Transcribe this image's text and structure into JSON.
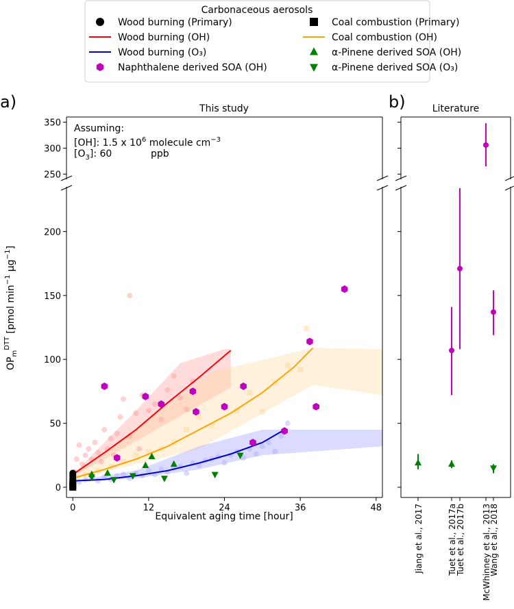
{
  "legend": {
    "title": "Carbonaceous aerosols",
    "entries": [
      {
        "key": "wood_primary",
        "label": "Wood burning (Primary)",
        "marker": "circle",
        "color": "#000000"
      },
      {
        "key": "coal_primary",
        "label": "Coal combustion (Primary)",
        "marker": "square",
        "color": "#000000"
      },
      {
        "key": "wood_oh",
        "label": "Wood burning (OH)",
        "marker": "line",
        "color": "#ff0000"
      },
      {
        "key": "coal_oh",
        "label": "Coal combustion (OH)",
        "marker": "line",
        "color": "#ffa500"
      },
      {
        "key": "wood_o3",
        "label": "Wood burning (O₃)",
        "marker": "line",
        "color": "#0000cc"
      },
      {
        "key": "apinene_oh",
        "label": "α-Pinene derived SOA (OH)",
        "marker": "triangle-up",
        "color": "#008000"
      },
      {
        "key": "naph_oh",
        "label": "Naphthalene derived SOA (OH)",
        "marker": "hexagon",
        "color": "#bf00bf"
      },
      {
        "key": "apinene_o3",
        "label": "α-Pinene derived SOA (O₃)",
        "marker": "triangle-down",
        "color": "#008000"
      }
    ]
  },
  "panel_a": {
    "letter": "a)",
    "title": "This study"
  },
  "panel_b": {
    "letter": "b)",
    "title": "Literature"
  },
  "annotation": {
    "line1": "Assuming:",
    "oh_prefix": "[OH]: 1.5 x 10",
    "oh_exp": "6",
    "oh_suffix": " molecule cm",
    "oh_unit_exp": "−3",
    "o3_prefix": "[O",
    "o3_sub": "3",
    "o3_mid": "]:  60",
    "o3_unit": "ppb"
  },
  "axes": {
    "x_label": "Equivalent aging time [hour]",
    "y_label_main": "OP",
    "y_label_sub": "m",
    "y_label_sup": "DTT",
    "y_label_rest": " [pmol min",
    "y_label_exp1": "−1",
    "y_label_mid": " μg",
    "y_label_exp2": "−1",
    "y_label_end": "]"
  },
  "chart_data": [
    {
      "type": "scatter",
      "title": "This study",
      "xlabel": "Equivalent aging time [hour]",
      "ylabel": "OPm DTT [pmol min−1 μg−1]",
      "xlim": [
        -1,
        49
      ],
      "ylim_lower": [
        -8,
        235
      ],
      "ylim_upper": [
        240,
        360
      ],
      "x_ticks": [
        "0",
        "12",
        "24",
        "36",
        "48"
      ],
      "y_ticks_lower": [
        "0",
        "50",
        "100",
        "150",
        "200"
      ],
      "y_ticks_upper": [
        "250",
        "300",
        "350"
      ],
      "fit_lines": [
        {
          "name": "Wood burning (OH)",
          "color": "#ff0000",
          "x": [
            0,
            5,
            10,
            15,
            20,
            25
          ],
          "y": [
            10,
            27,
            45,
            66,
            86,
            107
          ]
        },
        {
          "name": "Coal combustion (OH)",
          "color": "#ffa500",
          "x": [
            0,
            5,
            10,
            15,
            20,
            25,
            30,
            35,
            38
          ],
          "y": [
            7,
            14,
            22,
            32,
            45,
            58,
            74,
            94,
            109
          ]
        },
        {
          "name": "Wood burning (O₃)",
          "color": "#0000cc",
          "x": [
            0,
            5,
            10,
            15,
            20,
            25,
            30,
            33.5
          ],
          "y": [
            5,
            6,
            9,
            13,
            19,
            26,
            35,
            45
          ]
        }
      ],
      "bands": [
        {
          "name": "Wood burning (OH) uncertainty",
          "color": "#ff9999",
          "upper_x": [
            0,
            10,
            17,
            24,
            25
          ],
          "upper_y": [
            10,
            60,
            97,
            108,
            108
          ],
          "lower_x": [
            25,
            0
          ],
          "lower_y": [
            78,
            8
          ]
        },
        {
          "name": "Coal combustion (OH) uncertainty",
          "color": "#ffd699",
          "upper_x": [
            0,
            22,
            38,
            49
          ],
          "upper_y": [
            8,
            90,
            109,
            108
          ],
          "lower_x": [
            49,
            38,
            20,
            0
          ],
          "lower_y": [
            72,
            80,
            30,
            6
          ]
        },
        {
          "name": "Wood burning (O₃) uncertainty",
          "color": "#9999ff",
          "upper_x": [
            0,
            10,
            20,
            30,
            49
          ],
          "upper_y": [
            5,
            13,
            32,
            45,
            45
          ],
          "lower_x": [
            49,
            30,
            20,
            10,
            0
          ],
          "lower_y": [
            32,
            25,
            14,
            7,
            4
          ]
        }
      ],
      "faded_points": [
        {
          "name": "Wood burning (OH) measurements",
          "color": "#ff9999",
          "x": [
            0.3,
            0.6,
            1,
            1.5,
            2,
            2.5,
            3,
            3.5,
            4,
            4.5,
            5,
            5.5,
            6,
            6.5,
            7,
            7.5,
            8,
            9,
            10,
            11,
            12,
            13,
            14,
            15,
            16,
            17,
            18,
            19,
            9,
            10.5
          ],
          "y": [
            12,
            22,
            33,
            18,
            25,
            30,
            22,
            35,
            27,
            20,
            45,
            30,
            38,
            25,
            42,
            55,
            69,
            40,
            58,
            72,
            60,
            65,
            53,
            76,
            87,
            70,
            61,
            83,
            150,
            30
          ]
        },
        {
          "name": "Coal combustion (OH) measurements",
          "color": "#ffd699",
          "x": [
            0.5,
            2,
            4,
            6,
            8,
            10,
            12,
            14,
            16,
            18,
            20,
            22,
            24,
            26,
            28,
            30,
            32,
            34,
            36,
            37
          ],
          "y": [
            8,
            10,
            13,
            16,
            20,
            25,
            28,
            30,
            35,
            45,
            55,
            48,
            62,
            60,
            74,
            59,
            82,
            95,
            92,
            124
          ],
          "marker": "square"
        },
        {
          "name": "Wood burning (O₃) measurements",
          "color": "#aaaaff",
          "x": [
            1,
            2,
            3,
            4,
            5,
            6,
            7,
            8,
            9,
            10,
            11,
            12,
            13,
            14,
            15,
            16,
            17,
            18,
            19,
            20,
            21,
            22,
            23,
            24,
            25,
            26,
            27,
            28,
            29,
            30,
            31,
            32,
            33,
            34
          ],
          "y": [
            4,
            6,
            7,
            5,
            8,
            6,
            9,
            10,
            7,
            11,
            9,
            13,
            10,
            14,
            12,
            15,
            16,
            11,
            19,
            17,
            21,
            22,
            24,
            19,
            25,
            28,
            23,
            30,
            26,
            32,
            35,
            28,
            40,
            50
          ]
        }
      ],
      "series": [
        {
          "name": "Wood burning (Primary)",
          "marker": "circle",
          "color": "#000000",
          "x": [
            0,
            0,
            0,
            0,
            0,
            0,
            0,
            0
          ],
          "y": [
            2,
            3,
            4,
            5,
            6,
            7,
            9,
            11
          ]
        },
        {
          "name": "Coal combustion (Primary)",
          "marker": "square",
          "color": "#000000",
          "x": [
            0,
            0,
            0
          ],
          "y": [
            0,
            1,
            2
          ]
        },
        {
          "name": "Naphthalene derived SOA (OH)",
          "marker": "hexagon",
          "color": "#bf00bf",
          "x": [
            5,
            7,
            11.5,
            14,
            19,
            19.5,
            24,
            27,
            28.5,
            33.5,
            37.5,
            38.5,
            43
          ],
          "y": [
            79,
            23,
            71,
            65,
            75,
            59,
            63,
            79,
            35,
            44,
            114,
            63,
            155
          ]
        },
        {
          "name": "α-Pinene derived SOA (OH)",
          "marker": "triangle-up",
          "color": "#008000",
          "x": [
            3,
            5.5,
            11.5,
            12.5,
            16
          ],
          "y": [
            10,
            11,
            17,
            24,
            18
          ]
        },
        {
          "name": "α-Pinene derived SOA (O₃)",
          "marker": "triangle-down",
          "color": "#008000",
          "x": [
            3,
            6.5,
            9.5,
            14.5,
            22.5,
            26.5
          ],
          "y": [
            8,
            6,
            9,
            7,
            10,
            25
          ]
        }
      ]
    },
    {
      "type": "scatter",
      "title": "Literature",
      "categories": [
        "Jiang et al., 2017",
        "Tuet et al., 2017a",
        "Tuet et al., 2017b",
        "McWhinney et al., 2013",
        "Wang et al., 2018"
      ],
      "ylim_lower": [
        -8,
        235
      ],
      "ylim_upper": [
        240,
        360
      ],
      "points": [
        {
          "study": "Jiang et al., 2017",
          "marker": "triangle-up",
          "color": "#008000",
          "y": 19,
          "err_low": 14,
          "err_high": 26
        },
        {
          "study": "Tuet et al., 2017a",
          "marker": "none",
          "color": "#bf00bf",
          "y": 107,
          "err_low": 72,
          "err_high": 141
        },
        {
          "study": "Tuet et al., 2017a",
          "marker": "triangle-up",
          "color": "#008000",
          "y": 18,
          "err_low": 15,
          "err_high": 21
        },
        {
          "study": "Tuet et al., 2017b",
          "marker": "none",
          "color": "#bf00bf",
          "y": 171,
          "err_low": 108,
          "err_high": 234
        },
        {
          "study": "McWhinney et al., 2013",
          "marker": "none",
          "color": "#bf00bf",
          "y": 306,
          "err_low": 265,
          "err_high": 348
        },
        {
          "study": "Wang et al., 2018",
          "marker": "none",
          "color": "#bf00bf",
          "y": 137,
          "err_low": 119,
          "err_high": 154
        },
        {
          "study": "Wang et al., 2018",
          "marker": "triangle-down",
          "color": "#008000",
          "y": 15,
          "err_low": 11,
          "err_high": 18
        }
      ]
    }
  ]
}
